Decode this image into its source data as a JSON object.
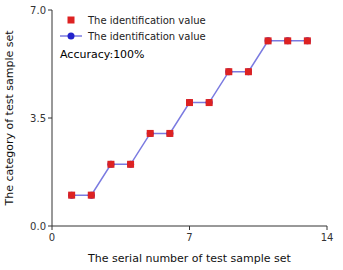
{
  "chart_data": {
    "type": "line",
    "x": [
      1,
      2,
      3,
      4,
      5,
      6,
      7,
      8,
      9,
      10,
      11,
      12,
      13
    ],
    "series": [
      {
        "name": "The identification value",
        "color": "#dd2222",
        "marker": "square",
        "line_style": "none",
        "values": [
          1,
          1,
          2,
          2,
          3,
          3,
          4,
          4,
          5,
          5,
          6,
          6,
          6
        ]
      },
      {
        "name": "The identification value",
        "color": "#2222cc",
        "marker": "circle",
        "line_style": "solid",
        "values": [
          1,
          1,
          2,
          2,
          3,
          3,
          4,
          4,
          5,
          5,
          6,
          6,
          6
        ]
      }
    ],
    "xlim": [
      0,
      14
    ],
    "ylim": [
      0,
      7.0
    ],
    "xticks": [
      0,
      7,
      14
    ],
    "yticks": [
      {
        "value": 0,
        "label": "0.0"
      },
      3.5,
      {
        "value": 7.0,
        "label": "7.0"
      }
    ],
    "xlabel": "The serial number of test sample set",
    "ylabel": "The category of test sample set",
    "annotations": [
      "Accuracy:100%"
    ],
    "legend": "upper left"
  }
}
